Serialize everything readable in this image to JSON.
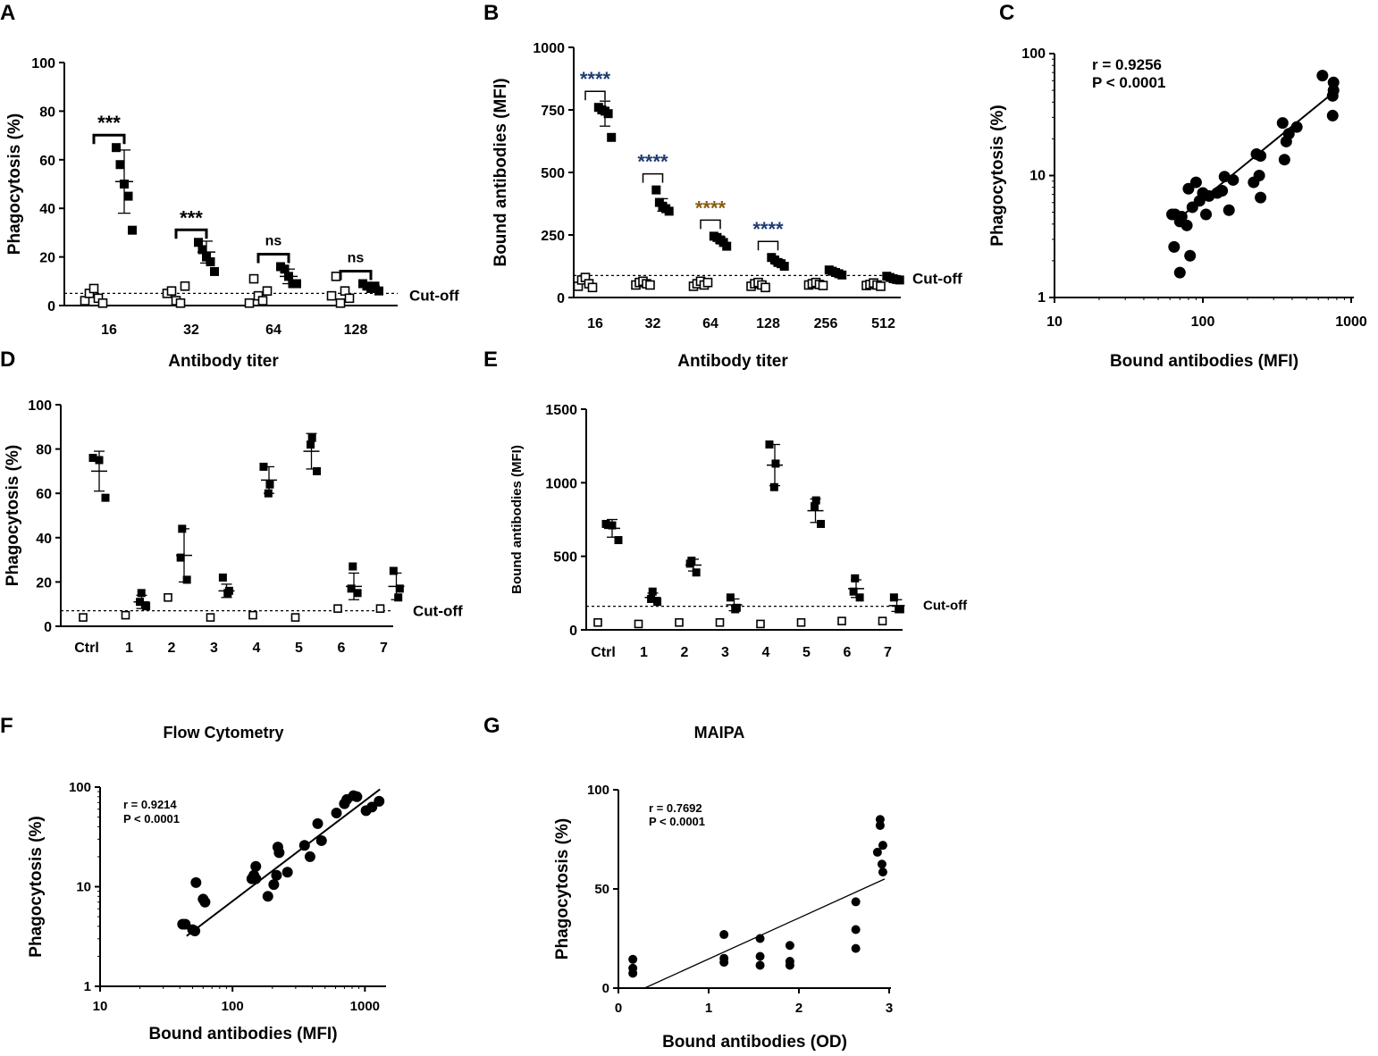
{
  "chart_data": [
    {
      "id": "A",
      "letter": "A",
      "type": "scatter",
      "ylabel": "Phagocytosis (%)",
      "xlabel": "Antibody titer",
      "ylim": [
        0,
        100
      ],
      "yticks": [
        "0",
        "20",
        "40",
        "60",
        "80",
        "100"
      ],
      "categories": [
        "16",
        "32",
        "64",
        "128"
      ],
      "cutoff": 5,
      "cutoff_label": "Cut-off",
      "open": [
        [
          2,
          5,
          7,
          3,
          1
        ],
        [
          5,
          6,
          2,
          1,
          8
        ],
        [
          1,
          11,
          4,
          2,
          6
        ],
        [
          4,
          12,
          1,
          6,
          3
        ]
      ],
      "filled": [
        [
          65,
          58,
          50,
          45,
          31
        ],
        [
          26,
          23,
          20,
          18,
          14
        ],
        [
          16,
          15,
          12,
          9,
          9
        ],
        [
          9,
          8,
          7,
          8,
          6
        ]
      ],
      "filled_mean": [
        51,
        22,
        12,
        8
      ],
      "filled_sd": [
        13,
        4.5,
        3,
        1
      ],
      "significance": [
        "***",
        "***",
        "ns",
        "ns"
      ]
    },
    {
      "id": "B",
      "letter": "B",
      "type": "scatter",
      "ylabel": "Bound antibodies (MFI)",
      "xlabel": "Antibody titer",
      "ylim": [
        0,
        1000
      ],
      "yticks": [
        "0",
        "250",
        "500",
        "750",
        "1000"
      ],
      "categories": [
        "16",
        "32",
        "64",
        "128",
        "256",
        "512"
      ],
      "cutoff": 88,
      "cutoff_label": "Cut-off",
      "open": [
        [
          45,
          70,
          80,
          55,
          40
        ],
        [
          50,
          60,
          65,
          55,
          50
        ],
        [
          45,
          55,
          65,
          50,
          60
        ],
        [
          45,
          55,
          60,
          50,
          40
        ],
        [
          50,
          55,
          60,
          52,
          48
        ],
        [
          48,
          52,
          58,
          50,
          45
        ]
      ],
      "filled": [
        [
          760,
          750,
          745,
          735,
          640
        ],
        [
          430,
          380,
          365,
          355,
          345
        ],
        [
          245,
          240,
          230,
          220,
          205
        ],
        [
          160,
          150,
          140,
          135,
          125
        ],
        [
          110,
          105,
          100,
          95,
          90
        ],
        [
          85,
          80,
          75,
          72,
          70
        ]
      ],
      "filled_mean": [
        735,
        370,
        230,
        142,
        100,
        76
      ],
      "filled_sd": [
        50,
        25,
        12,
        10,
        6,
        5
      ],
      "significance": [
        "****",
        "****",
        "****",
        "****",
        "",
        ""
      ]
    },
    {
      "id": "C",
      "letter": "C",
      "type": "scatter",
      "scale": "log",
      "ylabel": "Phagocytosis (%)",
      "xlabel": "Bound antibodies (MFI)",
      "xlim": [
        10,
        1000
      ],
      "ylim": [
        1,
        100
      ],
      "xticks": [
        "10",
        "100",
        "1000"
      ],
      "yticks": [
        "1",
        "10",
        "100"
      ],
      "r_text": "r = 0.9256",
      "p_text": "P < 0.0001",
      "fit": [
        [
          65,
          4.2
        ],
        [
          760,
          48
        ]
      ],
      "points": [
        [
          640,
          66
        ],
        [
          760,
          58
        ],
        [
          760,
          50
        ],
        [
          750,
          45
        ],
        [
          750,
          31
        ],
        [
          430,
          25
        ],
        [
          380,
          22
        ],
        [
          365,
          19
        ],
        [
          355,
          13.5
        ],
        [
          345,
          27
        ],
        [
          245,
          14.5
        ],
        [
          240,
          10
        ],
        [
          230,
          15
        ],
        [
          220,
          8.8
        ],
        [
          245,
          6.6
        ],
        [
          160,
          9.2
        ],
        [
          150,
          5.2
        ],
        [
          140,
          9.8
        ],
        [
          135,
          7.5
        ],
        [
          125,
          7.2
        ],
        [
          110,
          6.8
        ],
        [
          105,
          4.8
        ],
        [
          100,
          7.2
        ],
        [
          95,
          6.2
        ],
        [
          90,
          8.8
        ],
        [
          85,
          5.5
        ],
        [
          80,
          7.8
        ],
        [
          78,
          3.9
        ],
        [
          72,
          4.6
        ],
        [
          70,
          4.2
        ],
        [
          65,
          4.8
        ],
        [
          64,
          2.6
        ],
        [
          62,
          4.8
        ],
        [
          82,
          2.2
        ],
        [
          70,
          1.6
        ]
      ]
    },
    {
      "id": "D",
      "letter": "D",
      "type": "scatter",
      "ylabel": "Phagocytosis (%)",
      "xlabel": "",
      "ylim": [
        0,
        100
      ],
      "yticks": [
        "0",
        "20",
        "40",
        "60",
        "80",
        "100"
      ],
      "categories": [
        "Ctrl",
        "1",
        "2",
        "3",
        "4",
        "5",
        "6",
        "7"
      ],
      "cutoff": 7,
      "cutoff_label": "Cut-off",
      "open": [
        4,
        5,
        13,
        4,
        5,
        4,
        8,
        8
      ],
      "filled": [
        [
          76,
          75,
          58
        ],
        [
          15,
          11,
          9
        ],
        [
          44,
          31,
          21
        ],
        [
          22,
          16,
          15
        ],
        [
          72,
          64,
          60
        ],
        [
          85,
          82,
          70
        ],
        [
          27,
          17,
          15
        ],
        [
          25,
          17,
          13
        ]
      ],
      "filled_mean": [
        70,
        11,
        32,
        16,
        66,
        79,
        18,
        18
      ],
      "filled_sd": [
        9,
        3,
        12,
        3,
        6,
        8,
        6,
        6
      ]
    },
    {
      "id": "E",
      "letter": "E",
      "type": "scatter",
      "ylabel": "Bound antibodies (MFI)",
      "xlabel": "",
      "ylim": [
        0,
        1500
      ],
      "yticks": [
        "0",
        "500",
        "1000",
        "1500"
      ],
      "categories": [
        "Ctrl",
        "1",
        "2",
        "3",
        "4",
        "5",
        "6",
        "7"
      ],
      "cutoff": 160,
      "cutoff_label": "Cut-off",
      "open": [
        50,
        40,
        50,
        50,
        40,
        50,
        60,
        60
      ],
      "filled": [
        [
          720,
          710,
          610
        ],
        [
          260,
          210,
          190
        ],
        [
          470,
          450,
          390
        ],
        [
          220,
          150,
          140
        ],
        [
          1260,
          1130,
          970
        ],
        [
          880,
          840,
          720
        ],
        [
          350,
          260,
          220
        ],
        [
          220,
          140,
          140
        ]
      ],
      "filled_mean": [
        690,
        220,
        440,
        170,
        1120,
        810,
        280,
        165
      ],
      "filled_sd": [
        60,
        30,
        40,
        40,
        140,
        80,
        60,
        40
      ]
    },
    {
      "id": "F",
      "letter": "F",
      "type": "scatter",
      "scale": "log",
      "title": "Flow Cytometry",
      "ylabel": "Phagocytosis (%)",
      "xlabel": "Bound antibodies (MFI)",
      "xlim": [
        10,
        1400
      ],
      "ylim": [
        1,
        100
      ],
      "xticks": [
        "10",
        "100",
        "1000"
      ],
      "yticks": [
        "1",
        "10",
        "100"
      ],
      "r_text": "r = 0.9214",
      "p_text": "P < 0.0001",
      "fit": [
        [
          45,
          3.2
        ],
        [
          1300,
          95
        ]
      ],
      "points": [
        [
          42,
          4.2
        ],
        [
          44,
          4.2
        ],
        [
          50,
          3.7
        ],
        [
          52,
          3.6
        ],
        [
          53,
          11
        ],
        [
          60,
          7.5
        ],
        [
          62,
          7
        ],
        [
          140,
          12
        ],
        [
          145,
          13
        ],
        [
          150,
          16
        ],
        [
          150,
          12
        ],
        [
          185,
          8
        ],
        [
          205,
          10.5
        ],
        [
          215,
          13
        ],
        [
          220,
          25
        ],
        [
          225,
          22
        ],
        [
          260,
          14
        ],
        [
          350,
          26
        ],
        [
          385,
          20
        ],
        [
          440,
          43
        ],
        [
          470,
          29
        ],
        [
          610,
          55
        ],
        [
          700,
          68
        ],
        [
          730,
          75
        ],
        [
          820,
          82
        ],
        [
          870,
          80
        ],
        [
          1020,
          58
        ],
        [
          1130,
          63
        ],
        [
          1280,
          72
        ]
      ]
    },
    {
      "id": "G",
      "letter": "G",
      "type": "scatter",
      "title": "MAIPA",
      "ylabel": "Phagocytosis (%)",
      "xlabel": "Bound antibodies (OD)",
      "xlim": [
        0,
        3
      ],
      "ylim": [
        0,
        100
      ],
      "xticks": [
        "0",
        "1",
        "2",
        "3"
      ],
      "yticks": [
        "0",
        "50",
        "100"
      ],
      "r_text": "r = 0.7692",
      "p_text": "P < 0.0001",
      "fit": [
        [
          0.29,
          0
        ],
        [
          2.95,
          55
        ]
      ],
      "points": [
        [
          0.16,
          14.5
        ],
        [
          0.16,
          10
        ],
        [
          0.16,
          7.5
        ],
        [
          1.17,
          27
        ],
        [
          1.17,
          15
        ],
        [
          1.17,
          13
        ],
        [
          1.57,
          25
        ],
        [
          1.57,
          16
        ],
        [
          1.57,
          11.5
        ],
        [
          1.9,
          21.5
        ],
        [
          1.9,
          13.5
        ],
        [
          1.9,
          11.5
        ],
        [
          2.63,
          43.5
        ],
        [
          2.63,
          29.5
        ],
        [
          2.63,
          20
        ],
        [
          2.9,
          85
        ],
        [
          2.9,
          82
        ],
        [
          2.93,
          72
        ],
        [
          2.87,
          68.5
        ],
        [
          2.92,
          62.5
        ],
        [
          2.93,
          58.5
        ]
      ]
    }
  ]
}
